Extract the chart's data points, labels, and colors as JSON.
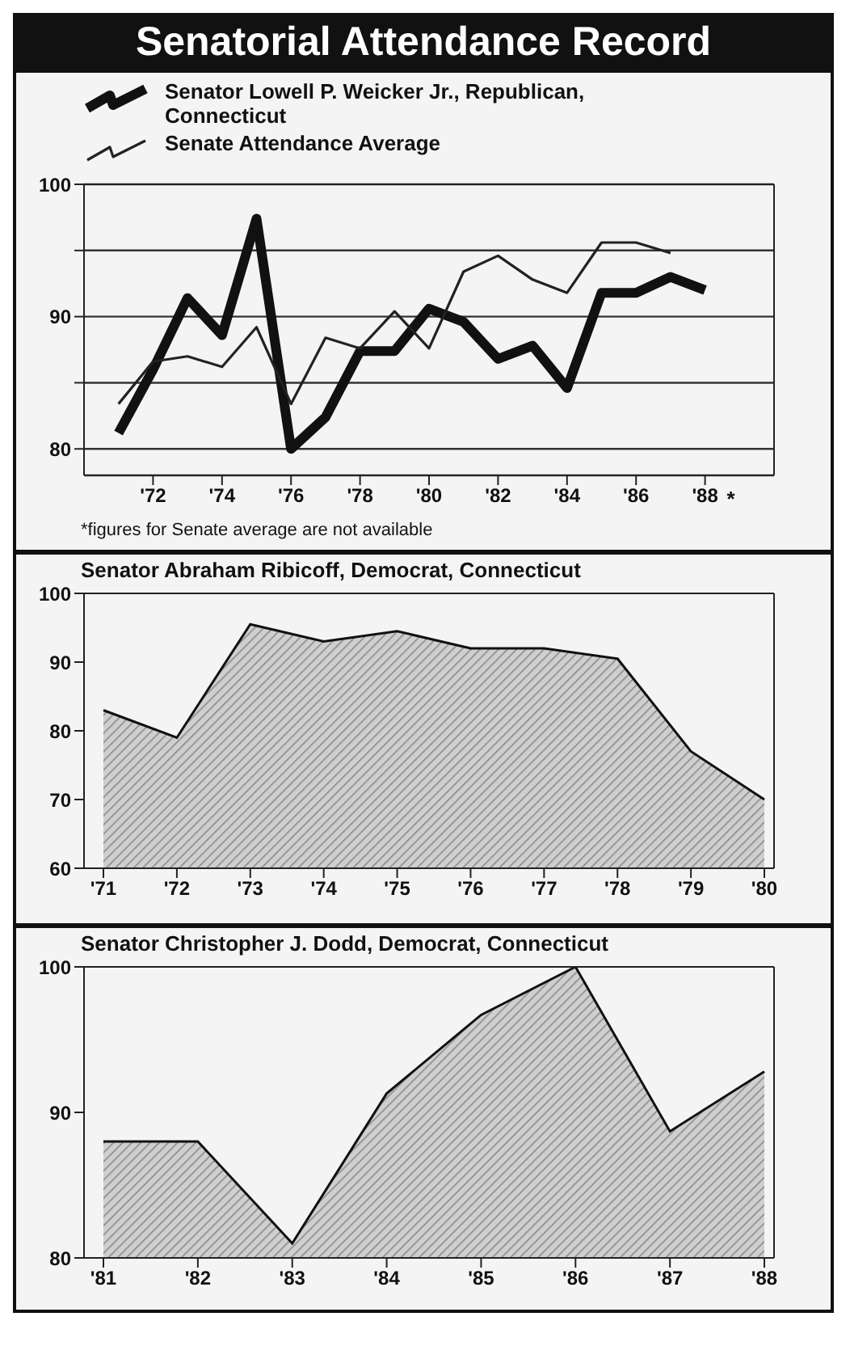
{
  "chart_data": [
    {
      "type": "line",
      "title": "Senatorial Attendance Record",
      "x": [
        1971,
        1972,
        1973,
        1974,
        1975,
        1976,
        1977,
        1978,
        1979,
        1980,
        1981,
        1982,
        1983,
        1984,
        1985,
        1986,
        1987,
        1988
      ],
      "series": [
        {
          "name": "Senator Lowell P. Weicker Jr., Republican, Connecticut",
          "color": "#111111",
          "values": [
            81.2,
            86,
            91.4,
            88.6,
            97.4,
            80,
            82.4,
            87.4,
            87.4,
            90.6,
            89.6,
            86.8,
            87.8,
            84.6,
            91.8,
            91.8,
            93,
            92
          ]
        },
        {
          "name": "Senate Attendance Average",
          "color": "#222222",
          "values": [
            83.4,
            86.6,
            87,
            86.2,
            89.2,
            83.4,
            88.4,
            87.6,
            90.4,
            87.6,
            93.4,
            94.6,
            92.8,
            91.8,
            95.6,
            95.6,
            94.8,
            null
          ]
        }
      ],
      "xlim": [
        1970,
        1990
      ],
      "xticks": [
        {
          "value": 1972,
          "label": "'72"
        },
        {
          "value": 1974,
          "label": "'74"
        },
        {
          "value": 1976,
          "label": "'76"
        },
        {
          "value": 1978,
          "label": "'78"
        },
        {
          "value": 1980,
          "label": "'80"
        },
        {
          "value": 1982,
          "label": "'82"
        },
        {
          "value": 1984,
          "label": "'84"
        },
        {
          "value": 1986,
          "label": "'86"
        },
        {
          "value": 1988,
          "label": "'88"
        }
      ],
      "ylim": [
        78,
        100
      ],
      "yticks": [
        80,
        {
          "value": 85,
          "label": null
        },
        90,
        {
          "value": 95,
          "label": null
        },
        100
      ],
      "grid": "y",
      "legend": "top left",
      "marker": "none",
      "annotations": [
        "*",
        "*figures for Senate average are not available"
      ]
    },
    {
      "type": "area",
      "title": "Senator Abraham Ribicoff, Democrat, Connecticut",
      "categories": [
        "'71",
        "'72",
        "'73",
        "'74",
        "'75",
        "'76",
        "'77",
        "'78",
        "'79",
        "'80"
      ],
      "series": [
        {
          "color": "#8a8a8a",
          "values": [
            83,
            79,
            95.5,
            93,
            94.5,
            92,
            92,
            90.5,
            77,
            70
          ]
        }
      ],
      "ylim": [
        60,
        100
      ],
      "yticks": [
        60,
        70,
        80,
        90,
        100
      ],
      "grid": false
    },
    {
      "type": "area",
      "title": "Senator Christopher J. Dodd, Democrat, Connecticut",
      "categories": [
        "'81",
        "'82",
        "'83",
        "'84",
        "'85",
        "'86",
        "'87",
        "'88"
      ],
      "series": [
        {
          "color": "#8a8a8a",
          "values": [
            88,
            88,
            81,
            91.3,
            96.7,
            100,
            88.7,
            92.8
          ]
        }
      ],
      "ylim": [
        80,
        100
      ],
      "yticks": [
        80,
        90,
        100
      ],
      "grid": false
    }
  ]
}
